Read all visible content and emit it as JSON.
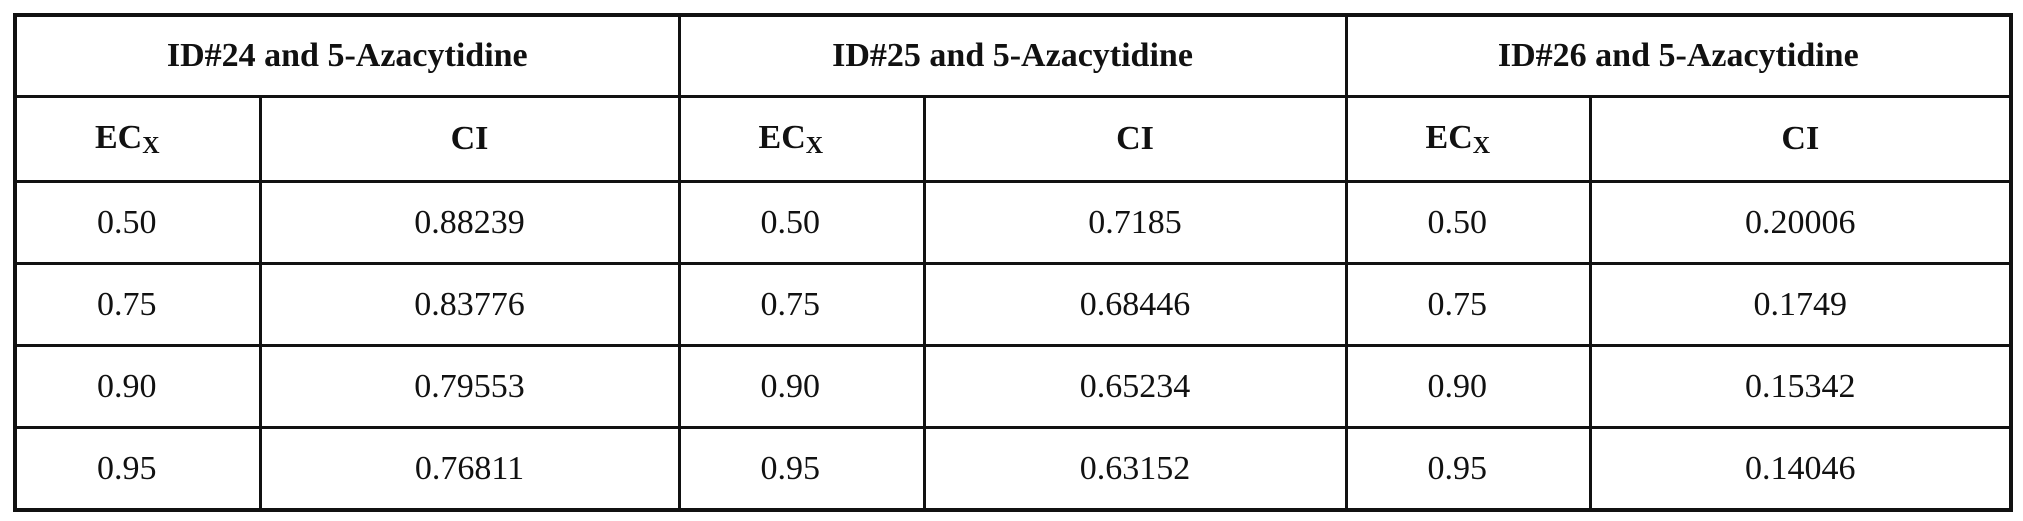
{
  "table": {
    "groups": [
      "ID#24 and 5-Azacytidine",
      "ID#25 and 5-Azacytidine",
      "ID#26 and 5-Azacytidine"
    ],
    "columns": [
      {
        "label": "EC",
        "subscript": "X"
      },
      {
        "label": "CI"
      }
    ],
    "rows": [
      [
        "0.50",
        "0.88239",
        "0.50",
        "0.7185",
        "0.50",
        "0.20006"
      ],
      [
        "0.75",
        "0.83776",
        "0.75",
        "0.68446",
        "0.75",
        "0.1749"
      ],
      [
        "0.90",
        "0.79553",
        "0.90",
        "0.65234",
        "0.90",
        "0.15342"
      ],
      [
        "0.95",
        "0.76811",
        "0.95",
        "0.63152",
        "0.95",
        "0.14046"
      ]
    ]
  }
}
